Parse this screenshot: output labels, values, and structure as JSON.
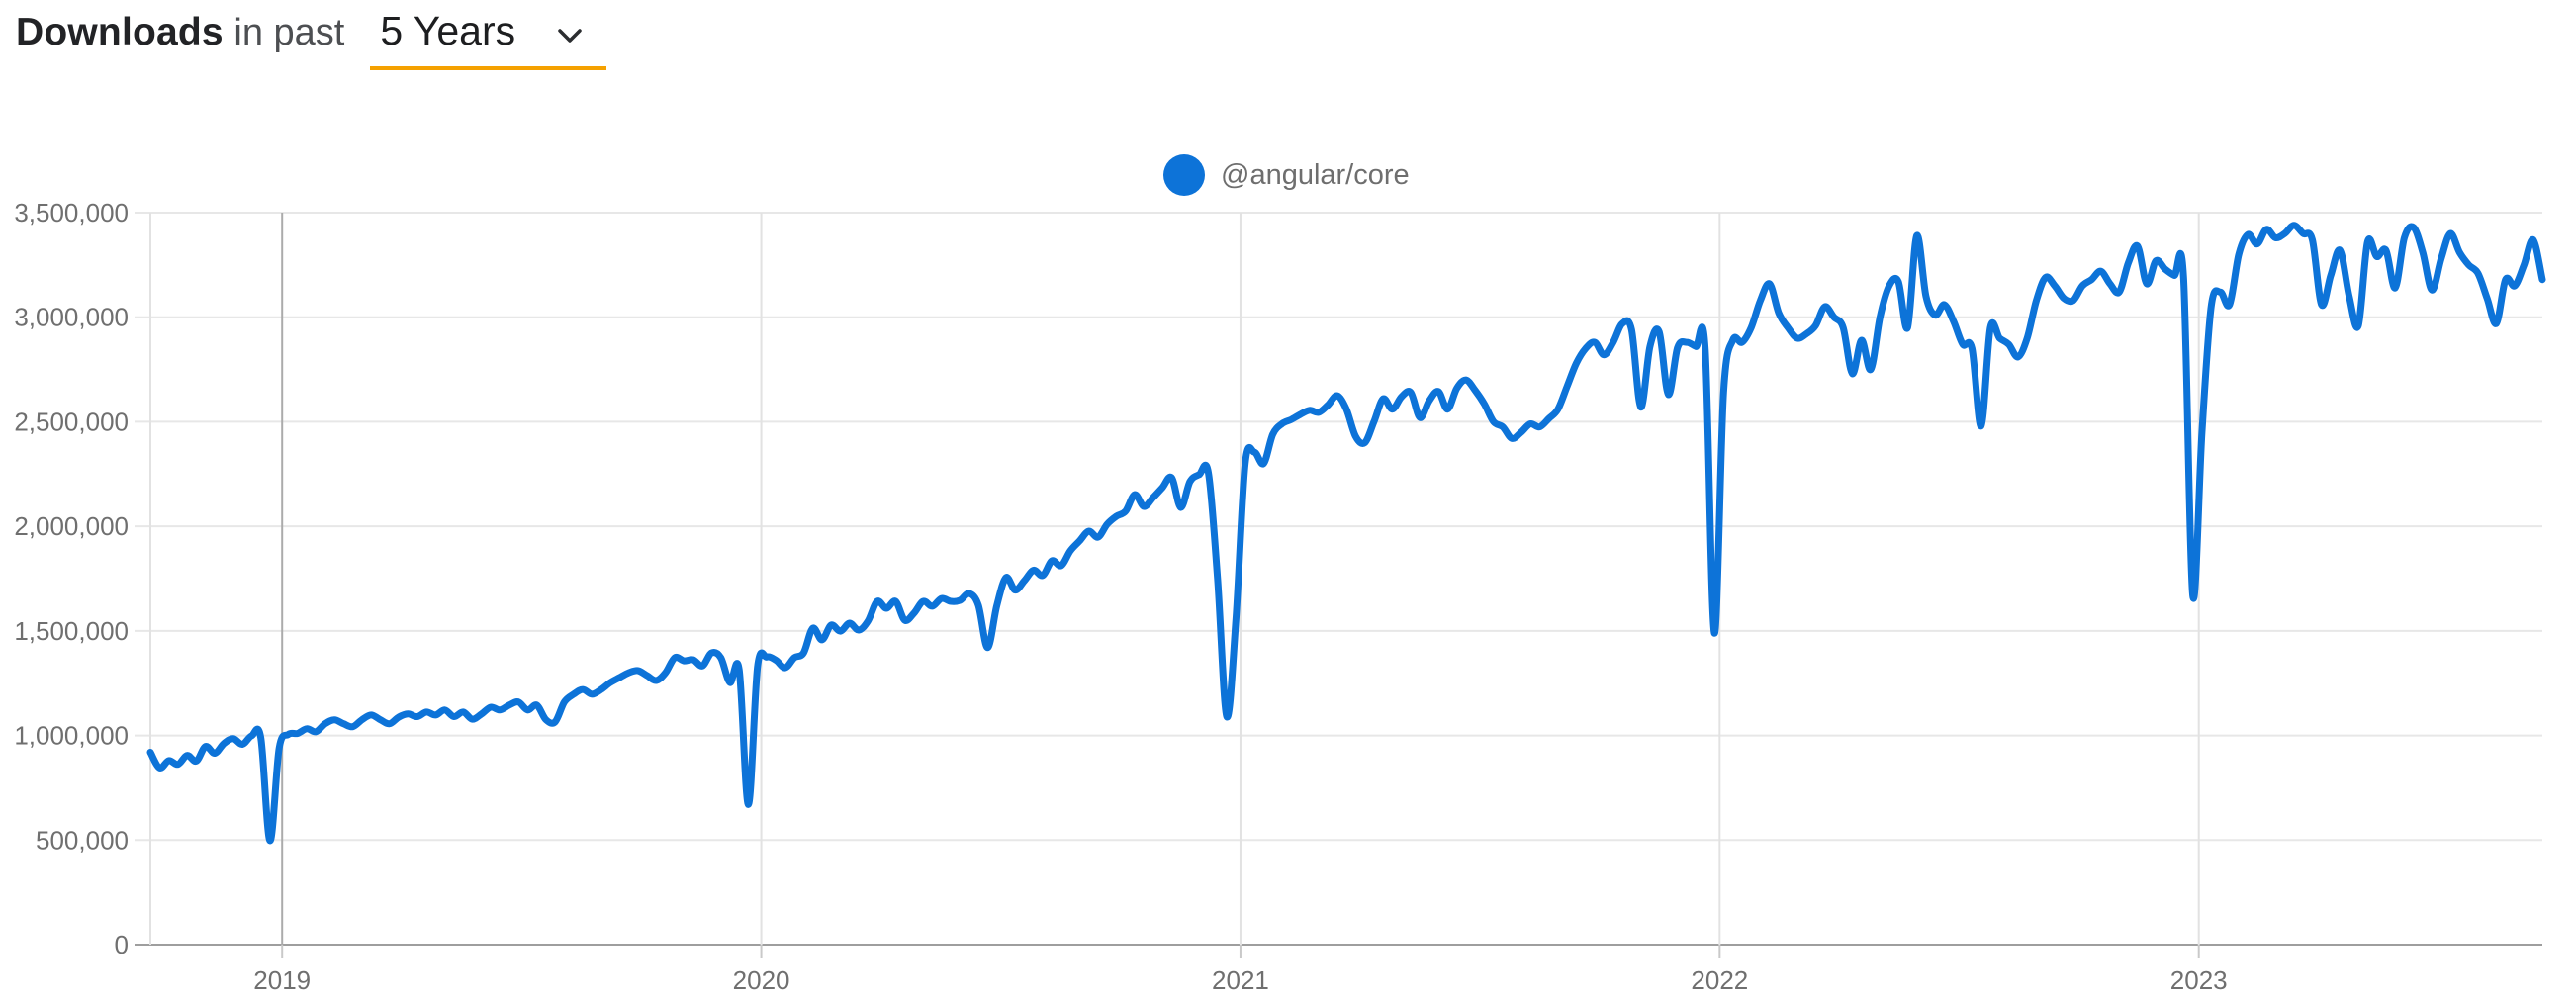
{
  "header": {
    "title_bold": "Downloads",
    "title_rest": " in past",
    "range_value": "5 Years",
    "underline_color": "#F5A100"
  },
  "legend": {
    "label": "@angular/core",
    "color": "#0d73d8"
  },
  "chart_data": {
    "type": "line",
    "title": "Downloads in past 5 Years",
    "xlabel": "",
    "ylabel": "",
    "legend_position": "top-center",
    "grid": "horizontal gridlines + vertical year gridlines",
    "x_axis": {
      "tick_labels": [
        "2019",
        "2020",
        "2021",
        "2022",
        "2023"
      ],
      "tick_values": [
        2019,
        2020,
        2021,
        2022,
        2023
      ],
      "range": [
        2018.725,
        2023.717
      ],
      "interval": "weekly"
    },
    "y_axis": {
      "tick_labels": [
        "0",
        "500,000",
        "1,000,000",
        "1,500,000",
        "2,000,000",
        "2,500,000",
        "3,000,000",
        "3,500,000"
      ],
      "tick_values": [
        0,
        500000,
        1000000,
        1500000,
        2000000,
        2500000,
        3000000,
        3500000
      ],
      "ylim": [
        0,
        3500000
      ]
    },
    "series": [
      {
        "name": "@angular/core",
        "color": "#0d73d8",
        "values": [
          920000,
          845000,
          880000,
          862000,
          905000,
          878000,
          948000,
          915000,
          962000,
          985000,
          958000,
          998000,
          990000,
          497000,
          940000,
          1005000,
          1010000,
          1032000,
          1018000,
          1056000,
          1075000,
          1056000,
          1042000,
          1075000,
          1098000,
          1075000,
          1056000,
          1088000,
          1103000,
          1090000,
          1112000,
          1098000,
          1122000,
          1090000,
          1112000,
          1078000,
          1103000,
          1135000,
          1122000,
          1145000,
          1160000,
          1122000,
          1145000,
          1075000,
          1065000,
          1160000,
          1197000,
          1220000,
          1197000,
          1220000,
          1253000,
          1277000,
          1300000,
          1310000,
          1286000,
          1263000,
          1300000,
          1372000,
          1357000,
          1362000,
          1333000,
          1395000,
          1372000,
          1253000,
          1315000,
          670000,
          1330000,
          1375000,
          1360000,
          1324000,
          1372000,
          1395000,
          1513000,
          1457000,
          1528000,
          1499000,
          1537000,
          1504000,
          1547000,
          1641000,
          1608000,
          1641000,
          1551000,
          1585000,
          1641000,
          1618000,
          1655000,
          1641000,
          1646000,
          1679000,
          1623000,
          1420000,
          1620000,
          1755000,
          1695000,
          1740000,
          1790000,
          1765000,
          1835000,
          1812000,
          1883000,
          1930000,
          1977000,
          1948000,
          2010000,
          2048000,
          2072000,
          2152000,
          2095000,
          2138000,
          2185000,
          2233000,
          2090000,
          2214000,
          2247000,
          2257000,
          1750000,
          1090000,
          1560000,
          2300000,
          2355000,
          2300000,
          2440000,
          2490000,
          2510000,
          2535000,
          2555000,
          2545000,
          2580000,
          2625000,
          2560000,
          2430000,
          2400000,
          2500000,
          2610000,
          2560000,
          2620000,
          2640000,
          2520000,
          2600000,
          2645000,
          2560000,
          2660000,
          2700000,
          2650000,
          2585000,
          2500000,
          2475000,
          2420000,
          2450000,
          2490000,
          2475000,
          2515000,
          2560000,
          2670000,
          2780000,
          2850000,
          2880000,
          2820000,
          2880000,
          2970000,
          2940000,
          2570000,
          2860000,
          2930000,
          2630000,
          2855000,
          2880000,
          2860000,
          2850000,
          1490000,
          2640000,
          2890000,
          2880000,
          2950000,
          3080000,
          3160000,
          3020000,
          2950000,
          2900000,
          2920000,
          2960000,
          3050000,
          3000000,
          2950000,
          2730000,
          2890000,
          2750000,
          3000000,
          3150000,
          3170000,
          2950000,
          3390000,
          3100000,
          3010000,
          3060000,
          2980000,
          2870000,
          2850000,
          2480000,
          2950000,
          2900000,
          2870000,
          2810000,
          2900000,
          3080000,
          3190000,
          3150000,
          3090000,
          3080000,
          3150000,
          3180000,
          3220000,
          3160000,
          3120000,
          3260000,
          3340000,
          3160000,
          3270000,
          3230000,
          3200000,
          3190000,
          1670000,
          2450000,
          3050000,
          3120000,
          3060000,
          3300000,
          3395000,
          3350000,
          3420000,
          3380000,
          3400000,
          3440000,
          3400000,
          3370000,
          3060000,
          3200000,
          3320000,
          3100000,
          2960000,
          3360000,
          3290000,
          3320000,
          3140000,
          3380000,
          3430000,
          3310000,
          3130000,
          3280000,
          3400000,
          3310000,
          3250000,
          3210000,
          3090000,
          2970000,
          3180000,
          3150000,
          3250000,
          3370000,
          3180000
        ]
      }
    ]
  }
}
